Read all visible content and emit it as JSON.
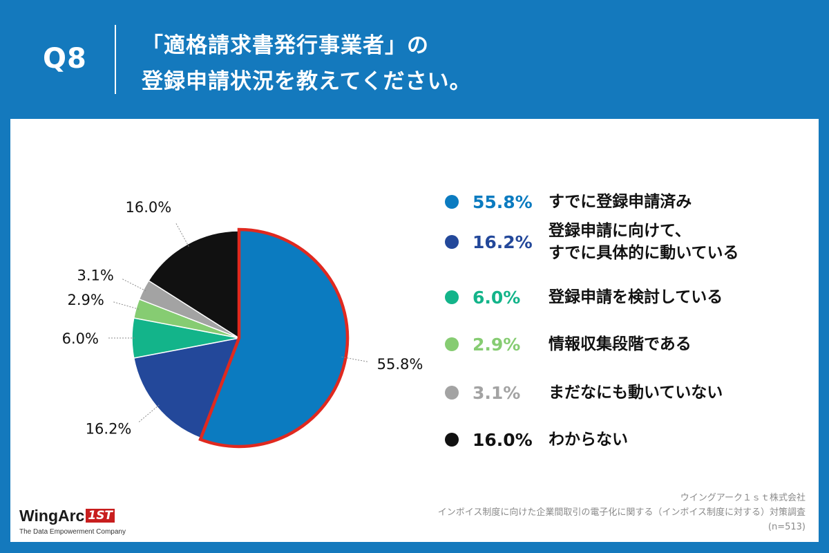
{
  "header": {
    "question": "Q8",
    "title_line1": "「適格請求書発行事業者」の",
    "title_line2": "登録申請状況を教えてください。"
  },
  "chart_data": {
    "type": "pie",
    "unit": "%",
    "slices": [
      {
        "label": "すでに登録申請済み",
        "value": 55.8,
        "display": "55.8%",
        "color": "#0b7bc0",
        "highlight": true
      },
      {
        "label": "登録申請に向けて、\nすでに具体的に動いている",
        "value": 16.2,
        "display": "16.2%",
        "color": "#23489a"
      },
      {
        "label": "登録申請を検討している",
        "value": 6.0,
        "display": "6.0%",
        "color": "#13b48a"
      },
      {
        "label": "情報収集段階である",
        "value": 2.9,
        "display": "2.9%",
        "color": "#86cc72"
      },
      {
        "label": "まだなにも動いていない",
        "value": 3.1,
        "display": "3.1%",
        "color": "#a3a3a3"
      },
      {
        "label": "わからない",
        "value": 16.0,
        "display": "16.0%",
        "color": "#111111"
      }
    ],
    "highlight_color": "#e0291f",
    "legend_placement": "right"
  },
  "footer": {
    "company": "ウイングアーク１ｓｔ株式会社",
    "survey": "インボイス制度に向けた企業間取引の電子化に関する（インボイス制度に対する）対策調査",
    "sample": "(n=513)",
    "brand_name": "WingArc",
    "brand_mark": "1ST",
    "brand_tagline": "The Data Empowerment Company"
  }
}
